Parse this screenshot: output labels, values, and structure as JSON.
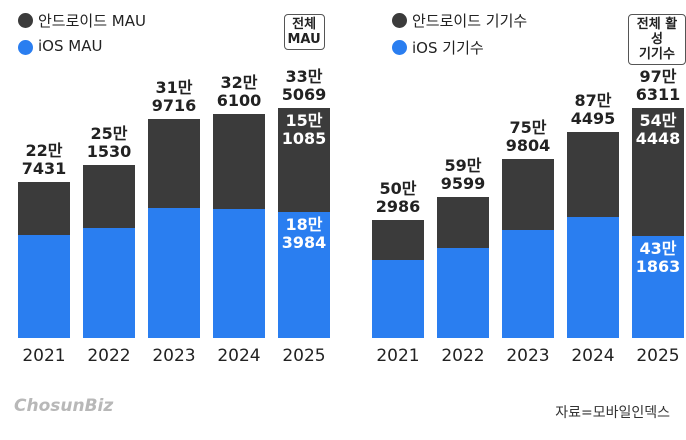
{
  "chart_data": [
    {
      "type": "stacked-bar",
      "categories": [
        "2021",
        "2022",
        "2023",
        "2024",
        "2025"
      ],
      "series": [
        {
          "name": "iOS MAU",
          "color": "#2a7ef0",
          "values": [
            150000,
            160000,
            190000,
            188000,
            183984
          ],
          "value_labels": [
            null,
            null,
            null,
            null,
            "18만\n3984"
          ]
        },
        {
          "name": "안드로이드 MAU",
          "color": "#3b3b3b",
          "values": [
            77431,
            91530,
            129716,
            138100,
            151085
          ],
          "value_labels": [
            null,
            null,
            null,
            null,
            "15만\n1085"
          ]
        }
      ],
      "totals": [
        227431,
        251530,
        319716,
        326100,
        335069
      ],
      "totals_labels": [
        "22만\n7431",
        "25만\n1530",
        "31만\n9716",
        "32만\n6100",
        "33만\n5069"
      ],
      "annotation": "전체\nMAU"
    },
    {
      "type": "stacked-bar",
      "categories": [
        "2021",
        "2022",
        "2023",
        "2024",
        "2025"
      ],
      "series": [
        {
          "name": "iOS 기기수",
          "color": "#2a7ef0",
          "values": [
            330000,
            380000,
            460000,
            515000,
            431863
          ],
          "value_labels": [
            null,
            null,
            null,
            null,
            "43만\n1863"
          ]
        },
        {
          "name": "안드로이드 기기수",
          "color": "#3b3b3b",
          "values": [
            172986,
            219599,
            299804,
            359495,
            544448
          ],
          "value_labels": [
            null,
            null,
            null,
            null,
            "54만\n4448"
          ]
        }
      ],
      "totals": [
        502986,
        599599,
        759804,
        874495,
        976311
      ],
      "totals_labels": [
        "50만\n2986",
        "59만\n9599",
        "75만\n9804",
        "87만\n4495",
        "97만\n6311"
      ],
      "annotation": "전체 활성\n기기수"
    }
  ],
  "footer": {
    "logo": "ChosunBiz",
    "source": "자료=모바일인덱스"
  }
}
